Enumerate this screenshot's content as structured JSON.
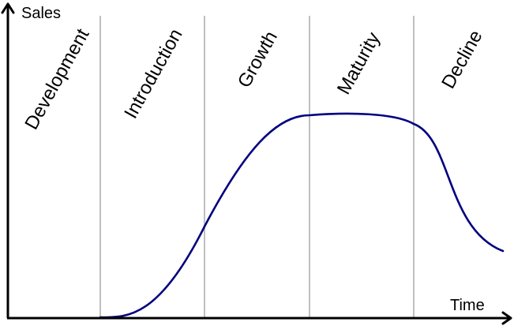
{
  "axes": {
    "y_label": "Sales",
    "x_label": "Time"
  },
  "stages": [
    {
      "label": "Development"
    },
    {
      "label": "Introduction"
    },
    {
      "label": "Growth"
    },
    {
      "label": "Maturity"
    },
    {
      "label": "Decline"
    }
  ],
  "colors": {
    "curve": "#00007f",
    "divider": "#bfbfbf",
    "axis": "#000000"
  }
}
